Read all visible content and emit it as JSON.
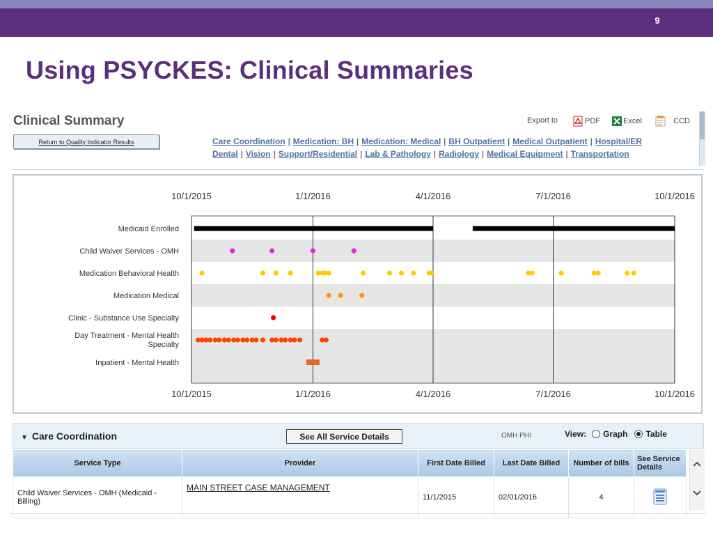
{
  "slide": {
    "page_number": "9",
    "title": "Using PSYCKES: Clinical Summaries"
  },
  "header": {
    "title": "Clinical Summary",
    "return_button": "Return to Quality Indicator Results",
    "export_label": "Export to",
    "export_options": [
      {
        "label": "PDF",
        "icon": "pdf-icon"
      },
      {
        "label": "Excel",
        "icon": "excel-icon"
      },
      {
        "label": "CCD",
        "icon": "ccd-icon"
      }
    ],
    "links_row1": [
      "Care Coordination",
      "Medication: BH",
      "Medication: Medical",
      "BH Outpatient",
      "Medical Outpatient",
      "Hospital/ER"
    ],
    "links_row2": [
      "Dental",
      "Vision",
      "Support/Residential",
      "Lab & Pathology",
      "Radiology",
      "Medical Equipment",
      "Transportation"
    ]
  },
  "timeline": {
    "axis_dates": [
      "10/1/2015",
      "1/1/2016",
      "4/1/2016",
      "7/1/2016",
      "10/1/2016"
    ],
    "domain": [
      "2015-10-01",
      "2016-10-01"
    ],
    "rows": [
      {
        "label": "Medicaid Enrolled",
        "type": "bar",
        "color": "#000000",
        "segments": [
          [
            "2015-10-03",
            "2016-04-01"
          ],
          [
            "2016-05-01",
            "2016-10-01"
          ]
        ]
      },
      {
        "label": "Child Waiver Services - OMH",
        "type": "dots",
        "color": "#ee22dd",
        "dates": [
          "2015-11-01",
          "2015-12-01",
          "2016-01-01",
          "2016-02-01"
        ]
      },
      {
        "label": "Medication Behavioral Health",
        "type": "dots",
        "color": "#ffcc00",
        "dates": [
          "2015-10-09",
          "2015-11-24",
          "2015-12-04",
          "2015-12-15",
          "2016-01-05",
          "2016-01-08",
          "2016-01-10",
          "2016-01-13",
          "2016-02-08",
          "2016-02-28",
          "2016-03-08",
          "2016-03-17",
          "2016-03-29",
          "2016-03-31",
          "2016-06-12",
          "2016-06-15",
          "2016-07-07",
          "2016-08-01",
          "2016-08-04",
          "2016-08-26",
          "2016-08-31"
        ]
      },
      {
        "label": "Medication Medical",
        "type": "dots",
        "color": "#ff9900",
        "dates": [
          "2016-01-13",
          "2016-01-22",
          "2016-02-07"
        ]
      },
      {
        "label": "Clinic - Substance Use Specialty",
        "type": "dots",
        "color": "#ee0000",
        "dates": [
          "2015-12-02"
        ]
      },
      {
        "label_lines": [
          "Day Treatment - Mental Health",
          "Specialty"
        ],
        "type": "dots",
        "color": "#ff4400",
        "dates": [
          "2015-10-06",
          "2015-10-09",
          "2015-10-12",
          "2015-10-15",
          "2015-10-19",
          "2015-10-22",
          "2015-10-26",
          "2015-10-29",
          "2015-11-02",
          "2015-11-05",
          "2015-11-09",
          "2015-11-12",
          "2015-11-16",
          "2015-11-19",
          "2015-11-24",
          "2015-12-01",
          "2015-12-04",
          "2015-12-08",
          "2015-12-11",
          "2015-12-15",
          "2015-12-18",
          "2015-12-22",
          "2016-01-08",
          "2016-01-11"
        ]
      },
      {
        "label": "Inpatient - Mental Health",
        "type": "bar",
        "color": "#dd6a2a",
        "segments": [
          [
            "2015-12-27",
            "2016-01-06"
          ]
        ]
      }
    ]
  },
  "care_coordination": {
    "title": "Care Coordination",
    "see_all_button": "See All Service Details",
    "omh_label": "OMH PHI",
    "view_label": "View:",
    "view_options": [
      {
        "label": "Graph",
        "selected": false
      },
      {
        "label": "Table",
        "selected": true
      }
    ],
    "columns": [
      "Service Type",
      "Provider",
      "First Date Billed",
      "Last Date Billed",
      "Number of bills",
      "See Service Details"
    ],
    "rows": [
      {
        "service_type": "Child Waiver Services - OMH (Medicaid - Billing)",
        "provider": "MAIN STREET CASE MANAGEMENT",
        "first_date": "11/1/2015",
        "last_date": "02/01/2016",
        "num_bills": "4"
      }
    ]
  }
}
